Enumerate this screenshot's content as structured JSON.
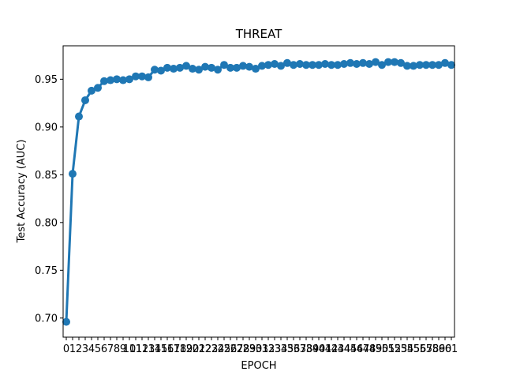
{
  "chart_data": {
    "type": "line",
    "title": "THREAT",
    "xlabel": "EPOCH",
    "ylabel": "Test Accuracy (AUC)",
    "x": [
      0,
      1,
      2,
      3,
      4,
      5,
      6,
      7,
      8,
      9,
      10,
      11,
      12,
      13,
      14,
      15,
      16,
      17,
      18,
      19,
      20,
      21,
      22,
      23,
      24,
      25,
      26,
      27,
      28,
      29,
      30,
      31,
      32,
      33,
      34,
      35,
      36,
      37,
      38,
      39,
      40,
      41,
      42,
      43,
      44,
      45,
      46,
      47,
      48,
      49,
      50,
      51,
      52,
      53,
      54,
      55,
      56,
      57,
      58,
      59,
      60,
      61
    ],
    "series": [
      {
        "values": [
          0.696,
          0.851,
          0.911,
          0.928,
          0.938,
          0.941,
          0.948,
          0.949,
          0.95,
          0.949,
          0.95,
          0.953,
          0.953,
          0.952,
          0.96,
          0.959,
          0.962,
          0.961,
          0.962,
          0.964,
          0.961,
          0.96,
          0.963,
          0.962,
          0.96,
          0.965,
          0.962,
          0.962,
          0.964,
          0.963,
          0.961,
          0.964,
          0.965,
          0.966,
          0.964,
          0.967,
          0.965,
          0.966,
          0.965,
          0.965,
          0.965,
          0.966,
          0.965,
          0.965,
          0.966,
          0.967,
          0.966,
          0.967,
          0.966,
          0.968,
          0.965,
          0.968,
          0.968,
          0.967,
          0.964,
          0.964,
          0.965,
          0.965,
          0.965,
          0.965,
          0.967,
          0.965
        ]
      }
    ],
    "yticks": [
      0.7,
      0.75,
      0.8,
      0.85,
      0.9,
      0.95
    ],
    "ytick_labels": [
      "0.70",
      "0.75",
      "0.80",
      "0.85",
      "0.90",
      "0.95"
    ],
    "ylim": [
      0.68,
      0.985
    ],
    "grid": false,
    "colors": {
      "line": "#1f77b4"
    }
  }
}
